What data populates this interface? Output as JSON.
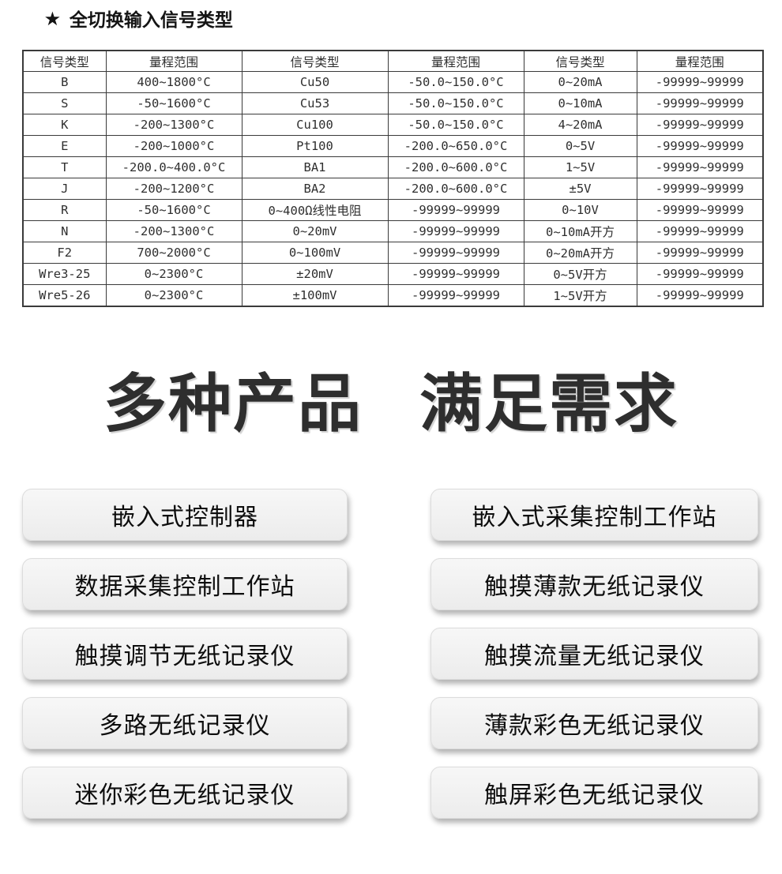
{
  "header": {
    "star_icon": "★",
    "title": "全切换输入信号类型"
  },
  "signal_table": {
    "column_headers": [
      "信号类型",
      "量程范围",
      "信号类型",
      "量程范围",
      "信号类型",
      "量程范围"
    ],
    "rows": [
      [
        "B",
        "400~1800°C",
        "Cu50",
        "-50.0~150.0°C",
        "0~20mA",
        "-99999~99999"
      ],
      [
        "S",
        "-50~1600°C",
        "Cu53",
        "-50.0~150.0°C",
        "0~10mA",
        "-99999~99999"
      ],
      [
        "K",
        "-200~1300°C",
        "Cu100",
        "-50.0~150.0°C",
        "4~20mA",
        "-99999~99999"
      ],
      [
        "E",
        "-200~1000°C",
        "Pt100",
        "-200.0~650.0°C",
        "0~5V",
        "-99999~99999"
      ],
      [
        "T",
        "-200.0~400.0°C",
        "BA1",
        "-200.0~600.0°C",
        "1~5V",
        "-99999~99999"
      ],
      [
        "J",
        "-200~1200°C",
        "BA2",
        "-200.0~600.0°C",
        "±5V",
        "-99999~99999"
      ],
      [
        "R",
        "-50~1600°C",
        "0~400Ω线性电阻",
        "-99999~99999",
        "0~10V",
        "-99999~99999"
      ],
      [
        "N",
        "-200~1300°C",
        "0~20mV",
        "-99999~99999",
        "0~10mA开方",
        "-99999~99999"
      ],
      [
        "F2",
        "700~2000°C",
        "0~100mV",
        "-99999~99999",
        "0~20mA开方",
        "-99999~99999"
      ],
      [
        "Wre3-25",
        "0~2300°C",
        "±20mV",
        "-99999~99999",
        "0~5V开方",
        "-99999~99999"
      ],
      [
        "Wre5-26",
        "0~2300°C",
        "±100mV",
        "-99999~99999",
        "1~5V开方",
        "-99999~99999"
      ]
    ]
  },
  "hero": {
    "left": "多种产品",
    "right": "满足需求"
  },
  "products": {
    "left_column": [
      "嵌入式控制器",
      "数据采集控制工作站",
      "触摸调节无纸记录仪",
      "多路无纸记录仪",
      "迷你彩色无纸记录仪"
    ],
    "right_column": [
      "嵌入式采集控制工作站",
      "触摸薄款无纸记录仪",
      "触摸流量无纸记录仪",
      "薄款彩色无纸记录仪",
      "触屏彩色无纸记录仪"
    ]
  },
  "colors": {
    "table_border": "#3a3a3a",
    "body_text": "#2f2f2f",
    "hero_text": "#2e2e2e",
    "card_background": "#f1f1f1",
    "card_shadow": "rgba(0,0,0,0.30)"
  }
}
